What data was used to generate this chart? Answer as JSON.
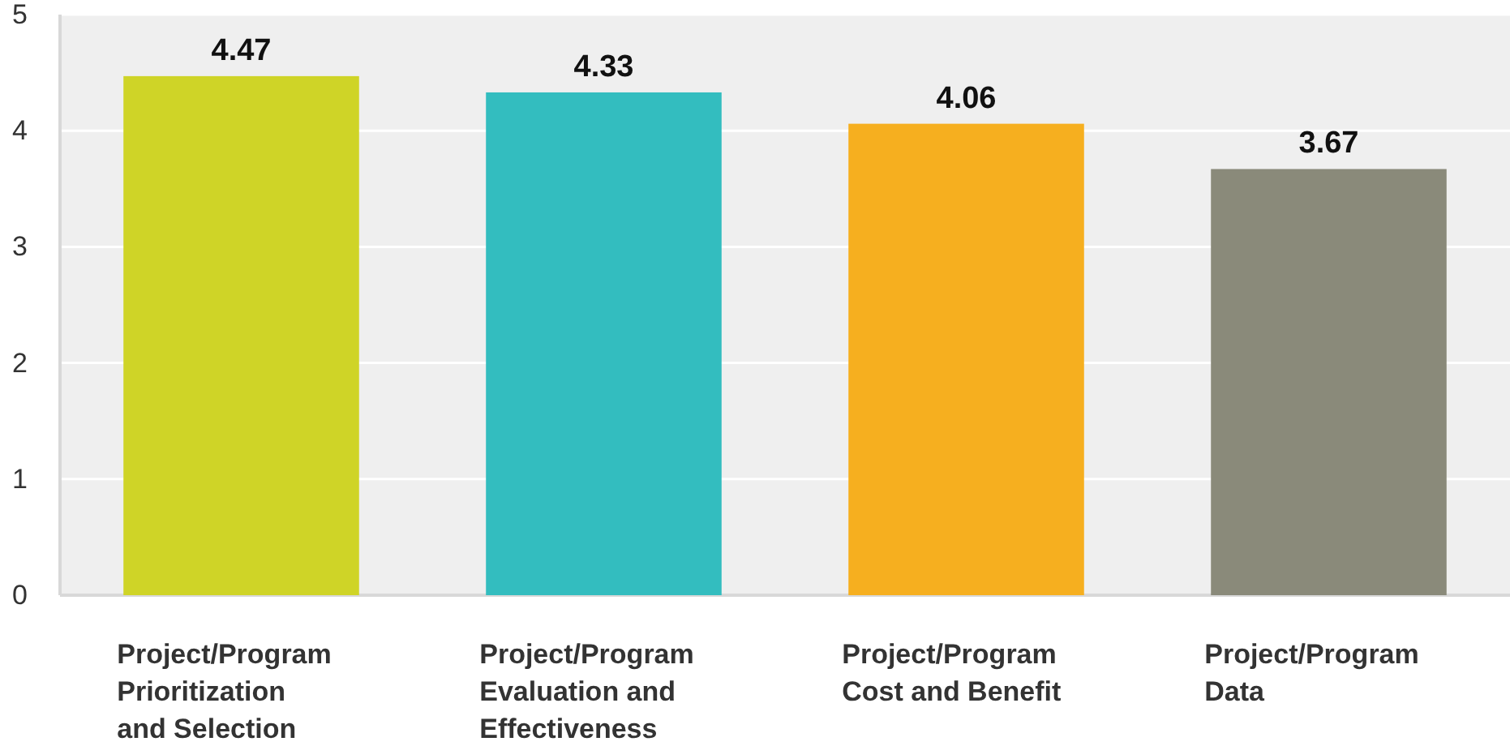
{
  "chart_data": {
    "type": "bar",
    "categories": [
      "Project/Program\nPrioritization\nand Selection",
      "Project/Program\nEvaluation and\nEffectiveness",
      "Project/Program\nCost and Benefit",
      "Project/Program\nData"
    ],
    "values": [
      4.47,
      4.33,
      4.06,
      3.67
    ],
    "colors": [
      "#cfd427",
      "#33bdbf",
      "#f6af1f",
      "#8a8a7a"
    ],
    "ylim": [
      0,
      5
    ],
    "yticks": [
      0,
      1,
      2,
      3,
      4,
      5
    ],
    "grid": "y",
    "data_labels": true
  }
}
